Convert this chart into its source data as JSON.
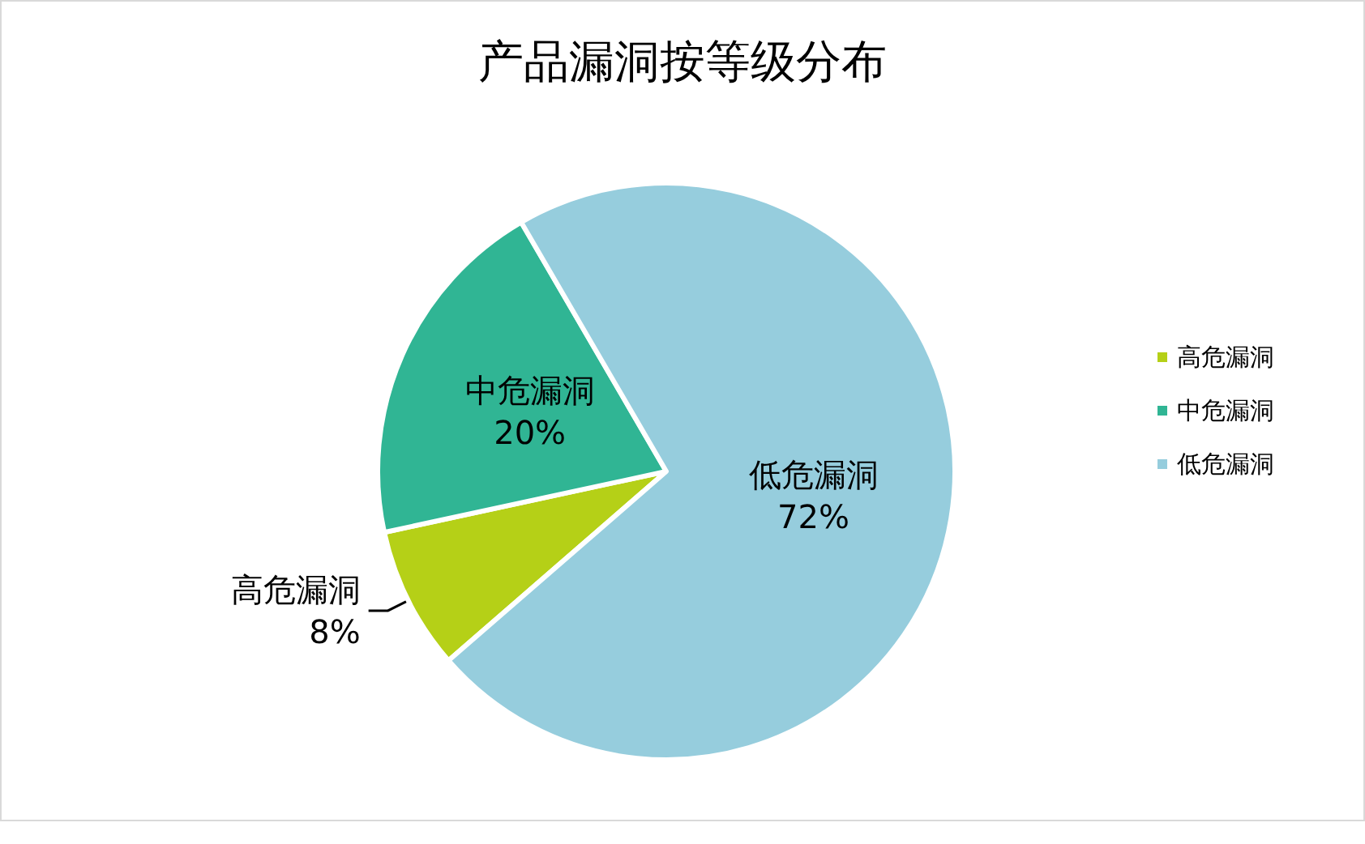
{
  "chart_data": {
    "type": "pie",
    "title": "产品漏洞按等级分布",
    "categories": [
      "高危漏洞",
      "中危漏洞",
      "低危漏洞"
    ],
    "values": [
      8,
      20,
      72
    ],
    "value_labels": [
      "8%",
      "20%",
      "72%"
    ],
    "colors": [
      "#b5d017",
      "#30b594",
      "#96cddd"
    ],
    "legend": "right"
  }
}
